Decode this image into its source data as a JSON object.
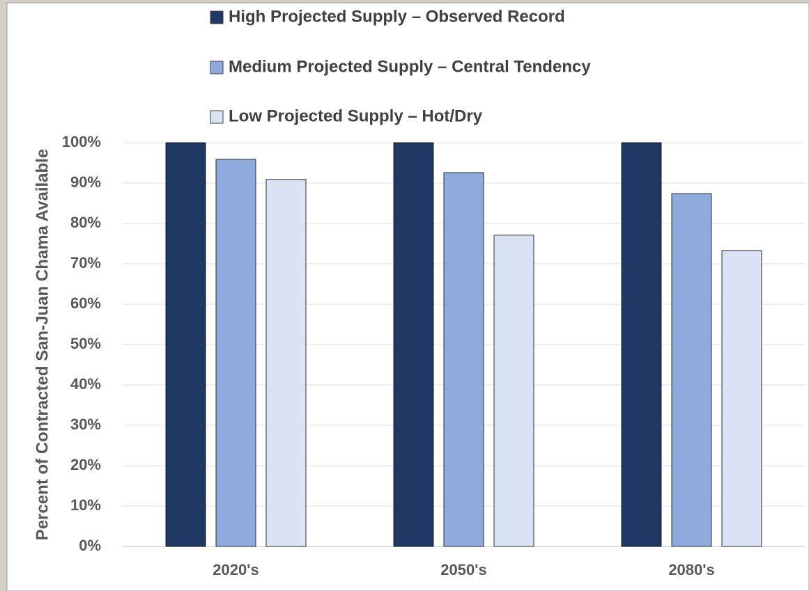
{
  "chart_data": {
    "type": "bar",
    "ylabel": "Percent of Contracted San-Juan Chama Available",
    "categories": [
      "2020's",
      "2050's",
      "2080's"
    ],
    "series": [
      {
        "name": "High Projected Supply – Observed Record",
        "color": "#203864",
        "values": [
          100,
          100,
          100
        ]
      },
      {
        "name": "Medium Projected Supply – Central Tendency",
        "color": "#8faadc",
        "values": [
          95.9,
          92.6,
          87.4
        ]
      },
      {
        "name": "Low Projected Supply – Hot/Dry",
        "color": "#dae3f3",
        "values": [
          90.9,
          77.1,
          73.3
        ]
      }
    ],
    "ylim": [
      0,
      100
    ],
    "yticks": [
      {
        "value": 0,
        "label": "0%"
      },
      {
        "value": 10,
        "label": "10%"
      },
      {
        "value": 20,
        "label": "20%"
      },
      {
        "value": 30,
        "label": "30%"
      },
      {
        "value": 40,
        "label": "40%"
      },
      {
        "value": 50,
        "label": "50%"
      },
      {
        "value": 60,
        "label": "60%"
      },
      {
        "value": 70,
        "label": "70%"
      },
      {
        "value": 80,
        "label": "80%"
      },
      {
        "value": 90,
        "label": "90%"
      },
      {
        "value": 100,
        "label": "100%"
      }
    ],
    "grid": true,
    "legend": "top"
  }
}
